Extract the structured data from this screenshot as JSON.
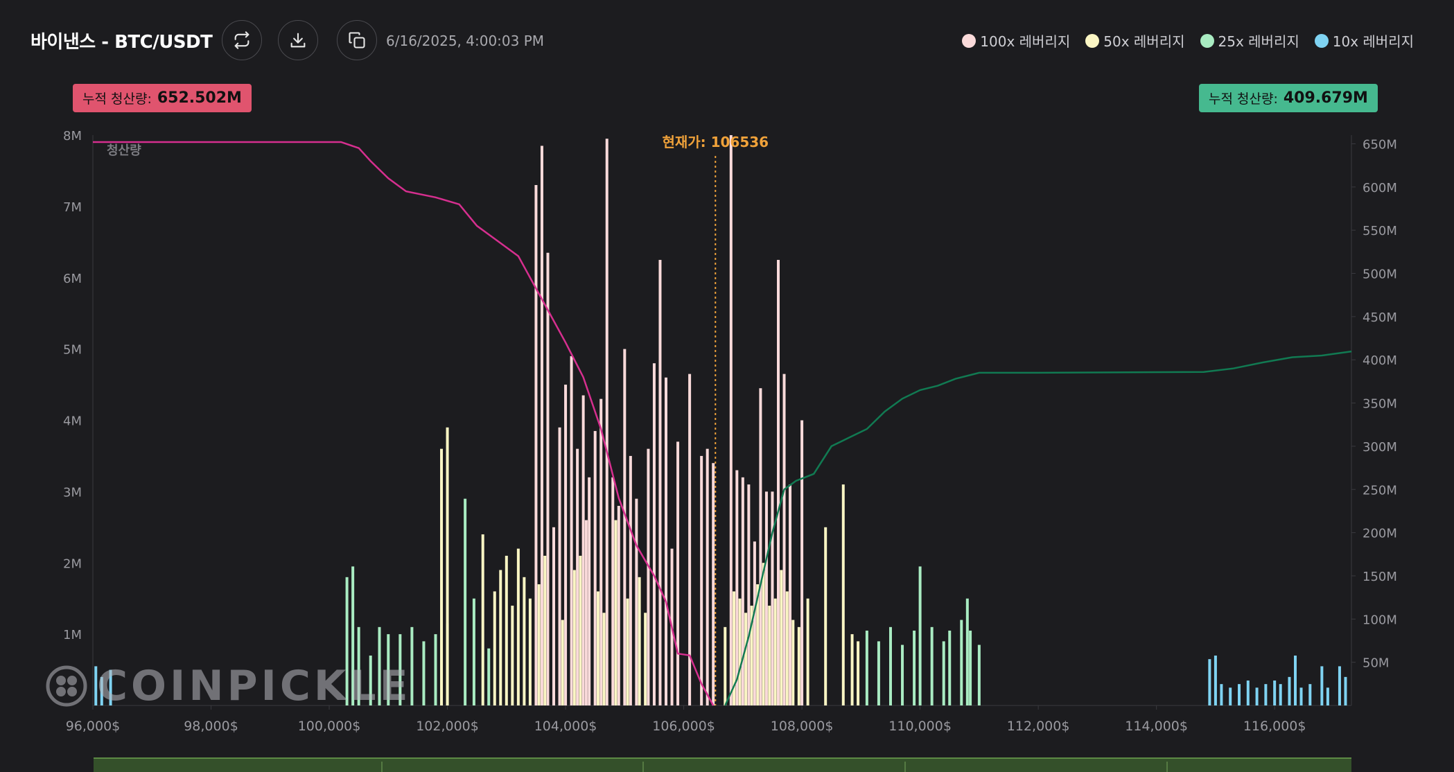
{
  "header": {
    "title": "바이낸스 - BTC/USDT",
    "timestamp": "6/16/2025, 4:00:03 PM",
    "buttons": [
      "refresh-icon",
      "download-icon",
      "copy-icon"
    ]
  },
  "legend": [
    {
      "label": "100x 레버리지",
      "color": "#fadada"
    },
    {
      "label": "50x 레버리지",
      "color": "#fbf6c4"
    },
    {
      "label": "25x 레버리지",
      "color": "#a9ecc2"
    },
    {
      "label": "10x 레버리지",
      "color": "#7fd3f2"
    }
  ],
  "badges": {
    "left": {
      "label": "누적 청산량:",
      "value": "652.502M"
    },
    "right": {
      "label": "누적 청산량:",
      "value": "409.679M"
    }
  },
  "watermark": "COINPICKLE",
  "chart_data": {
    "type": "bar",
    "ylabel": "청산량",
    "current_price_label": "현재가: 106536",
    "current_price": 106536,
    "xlim": [
      96000,
      117300
    ],
    "ylim_left": [
      0,
      8000000
    ],
    "ylim_right": [
      0,
      660000000
    ],
    "x_ticks": [
      "96,000$",
      "98,000$",
      "100,000$",
      "102,000$",
      "104,000$",
      "106,000$",
      "108,000$",
      "110,000$",
      "112,000$",
      "114,000$",
      "116,000$"
    ],
    "x_tick_values": [
      96000,
      98000,
      100000,
      102000,
      104000,
      106000,
      108000,
      110000,
      112000,
      114000,
      116000
    ],
    "y_ticks_left": [
      "1M",
      "2M",
      "3M",
      "4M",
      "5M",
      "6M",
      "7M",
      "8M"
    ],
    "y_ticks_right": [
      "50M",
      "100M",
      "150M",
      "200M",
      "250M",
      "300M",
      "350M",
      "400M",
      "450M",
      "500M",
      "550M",
      "600M",
      "650M"
    ],
    "series": [
      {
        "name": "100x 레버리지",
        "color": "#fadada",
        "points": [
          [
            103500,
            7300000
          ],
          [
            103600,
            7850000
          ],
          [
            103700,
            6350000
          ],
          [
            103900,
            3900000
          ],
          [
            104000,
            4500000
          ],
          [
            104100,
            4900000
          ],
          [
            104200,
            3600000
          ],
          [
            104300,
            4350000
          ],
          [
            104400,
            3200000
          ],
          [
            104500,
            3850000
          ],
          [
            104600,
            4300000
          ],
          [
            104700,
            7950000
          ],
          [
            104800,
            3200000
          ],
          [
            104900,
            2800000
          ],
          [
            105000,
            5000000
          ],
          [
            105100,
            3500000
          ],
          [
            105200,
            2900000
          ],
          [
            105400,
            3600000
          ],
          [
            105500,
            4800000
          ],
          [
            105600,
            6250000
          ],
          [
            105700,
            4600000
          ],
          [
            105900,
            3700000
          ],
          [
            106100,
            4650000
          ],
          [
            106300,
            3500000
          ],
          [
            106400,
            3600000
          ],
          [
            106500,
            3400000
          ],
          [
            106800,
            8000000
          ],
          [
            106900,
            3300000
          ],
          [
            107000,
            3200000
          ],
          [
            107100,
            3100000
          ],
          [
            107300,
            4450000
          ],
          [
            107400,
            3000000
          ],
          [
            107500,
            3000000
          ],
          [
            107600,
            6250000
          ],
          [
            107700,
            4650000
          ],
          [
            107800,
            3100000
          ],
          [
            108000,
            4000000
          ],
          [
            107200,
            2300000
          ],
          [
            105800,
            2200000
          ],
          [
            104350,
            2600000
          ],
          [
            103800,
            2500000
          ]
        ]
      },
      {
        "name": "50x 레버리지",
        "color": "#fbf6c4",
        "points": [
          [
            101900,
            3600000
          ],
          [
            102000,
            3900000
          ],
          [
            102600,
            2400000
          ],
          [
            102800,
            1600000
          ],
          [
            102900,
            1900000
          ],
          [
            103000,
            2100000
          ],
          [
            103100,
            1400000
          ],
          [
            103200,
            2200000
          ],
          [
            103300,
            1800000
          ],
          [
            103400,
            1500000
          ],
          [
            103550,
            1700000
          ],
          [
            103650,
            2100000
          ],
          [
            103800,
            1300000
          ],
          [
            103950,
            1200000
          ],
          [
            104150,
            1900000
          ],
          [
            104250,
            2100000
          ],
          [
            104550,
            1600000
          ],
          [
            104650,
            1300000
          ],
          [
            104850,
            2600000
          ],
          [
            105050,
            1500000
          ],
          [
            105250,
            1800000
          ],
          [
            105350,
            1300000
          ],
          [
            106700,
            1100000
          ],
          [
            106850,
            1600000
          ],
          [
            106950,
            1500000
          ],
          [
            107050,
            1300000
          ],
          [
            107150,
            1400000
          ],
          [
            107250,
            1700000
          ],
          [
            107350,
            2000000
          ],
          [
            107450,
            1400000
          ],
          [
            107550,
            1500000
          ],
          [
            107650,
            1900000
          ],
          [
            107750,
            1600000
          ],
          [
            107850,
            1200000
          ],
          [
            107950,
            1100000
          ],
          [
            108100,
            1500000
          ],
          [
            108400,
            2500000
          ],
          [
            108700,
            3100000
          ],
          [
            108850,
            1000000
          ],
          [
            108950,
            900000
          ]
        ]
      },
      {
        "name": "25x 레버리지",
        "color": "#a9ecc2",
        "points": [
          [
            100300,
            1800000
          ],
          [
            100400,
            1950000
          ],
          [
            100500,
            1100000
          ],
          [
            100700,
            700000
          ],
          [
            100850,
            1100000
          ],
          [
            101000,
            1000000
          ],
          [
            101200,
            1000000
          ],
          [
            101400,
            1100000
          ],
          [
            101600,
            900000
          ],
          [
            101800,
            1000000
          ],
          [
            102000,
            1150000
          ],
          [
            102300,
            2900000
          ],
          [
            102450,
            1500000
          ],
          [
            102700,
            800000
          ],
          [
            109100,
            1050000
          ],
          [
            109300,
            900000
          ],
          [
            109500,
            1100000
          ],
          [
            109700,
            850000
          ],
          [
            109900,
            1050000
          ],
          [
            110000,
            1950000
          ],
          [
            110200,
            1100000
          ],
          [
            110400,
            900000
          ],
          [
            110500,
            1050000
          ],
          [
            110700,
            1200000
          ],
          [
            110800,
            1500000
          ],
          [
            110850,
            1050000
          ],
          [
            111000,
            850000
          ]
        ]
      },
      {
        "name": "10x 레버리지",
        "color": "#7fd3f2",
        "points": [
          [
            96050,
            550000
          ],
          [
            96150,
            400000
          ],
          [
            96300,
            500000
          ],
          [
            114900,
            650000
          ],
          [
            115000,
            700000
          ],
          [
            115100,
            300000
          ],
          [
            115250,
            250000
          ],
          [
            115400,
            300000
          ],
          [
            115550,
            350000
          ],
          [
            115700,
            250000
          ],
          [
            115850,
            300000
          ],
          [
            116000,
            350000
          ],
          [
            116100,
            300000
          ],
          [
            116250,
            400000
          ],
          [
            116350,
            700000
          ],
          [
            116450,
            250000
          ],
          [
            116600,
            300000
          ],
          [
            116800,
            550000
          ],
          [
            116900,
            250000
          ],
          [
            117100,
            550000
          ],
          [
            117200,
            400000
          ]
        ]
      }
    ],
    "cumulative_short": {
      "color": "#d62f8f",
      "points": [
        [
          96000,
          652000000
        ],
        [
          100200,
          652000000
        ],
        [
          100500,
          645000000
        ],
        [
          100700,
          630000000
        ],
        [
          101000,
          610000000
        ],
        [
          101300,
          595000000
        ],
        [
          101800,
          588000000
        ],
        [
          102200,
          580000000
        ],
        [
          102500,
          555000000
        ],
        [
          102800,
          540000000
        ],
        [
          103200,
          520000000
        ],
        [
          103600,
          470000000
        ],
        [
          104000,
          420000000
        ],
        [
          104300,
          380000000
        ],
        [
          104600,
          320000000
        ],
        [
          104900,
          240000000
        ],
        [
          105200,
          185000000
        ],
        [
          105500,
          150000000
        ],
        [
          105700,
          120000000
        ],
        [
          105900,
          60000000
        ],
        [
          106100,
          58000000
        ],
        [
          106300,
          25000000
        ],
        [
          106500,
          0
        ]
      ]
    },
    "cumulative_long": {
      "color": "#117a52",
      "points": [
        [
          106700,
          0
        ],
        [
          106900,
          30000000
        ],
        [
          107100,
          80000000
        ],
        [
          107300,
          140000000
        ],
        [
          107500,
          200000000
        ],
        [
          107700,
          250000000
        ],
        [
          107900,
          260000000
        ],
        [
          108200,
          268000000
        ],
        [
          108500,
          300000000
        ],
        [
          108800,
          310000000
        ],
        [
          109100,
          320000000
        ],
        [
          109400,
          340000000
        ],
        [
          109700,
          355000000
        ],
        [
          110000,
          365000000
        ],
        [
          110300,
          370000000
        ],
        [
          110600,
          378000000
        ],
        [
          111000,
          385000000
        ],
        [
          112000,
          385000000
        ],
        [
          114800,
          386000000
        ],
        [
          115300,
          390000000
        ],
        [
          115800,
          397000000
        ],
        [
          116300,
          403000000
        ],
        [
          116800,
          405000000
        ],
        [
          117300,
          409679000
        ]
      ]
    }
  }
}
